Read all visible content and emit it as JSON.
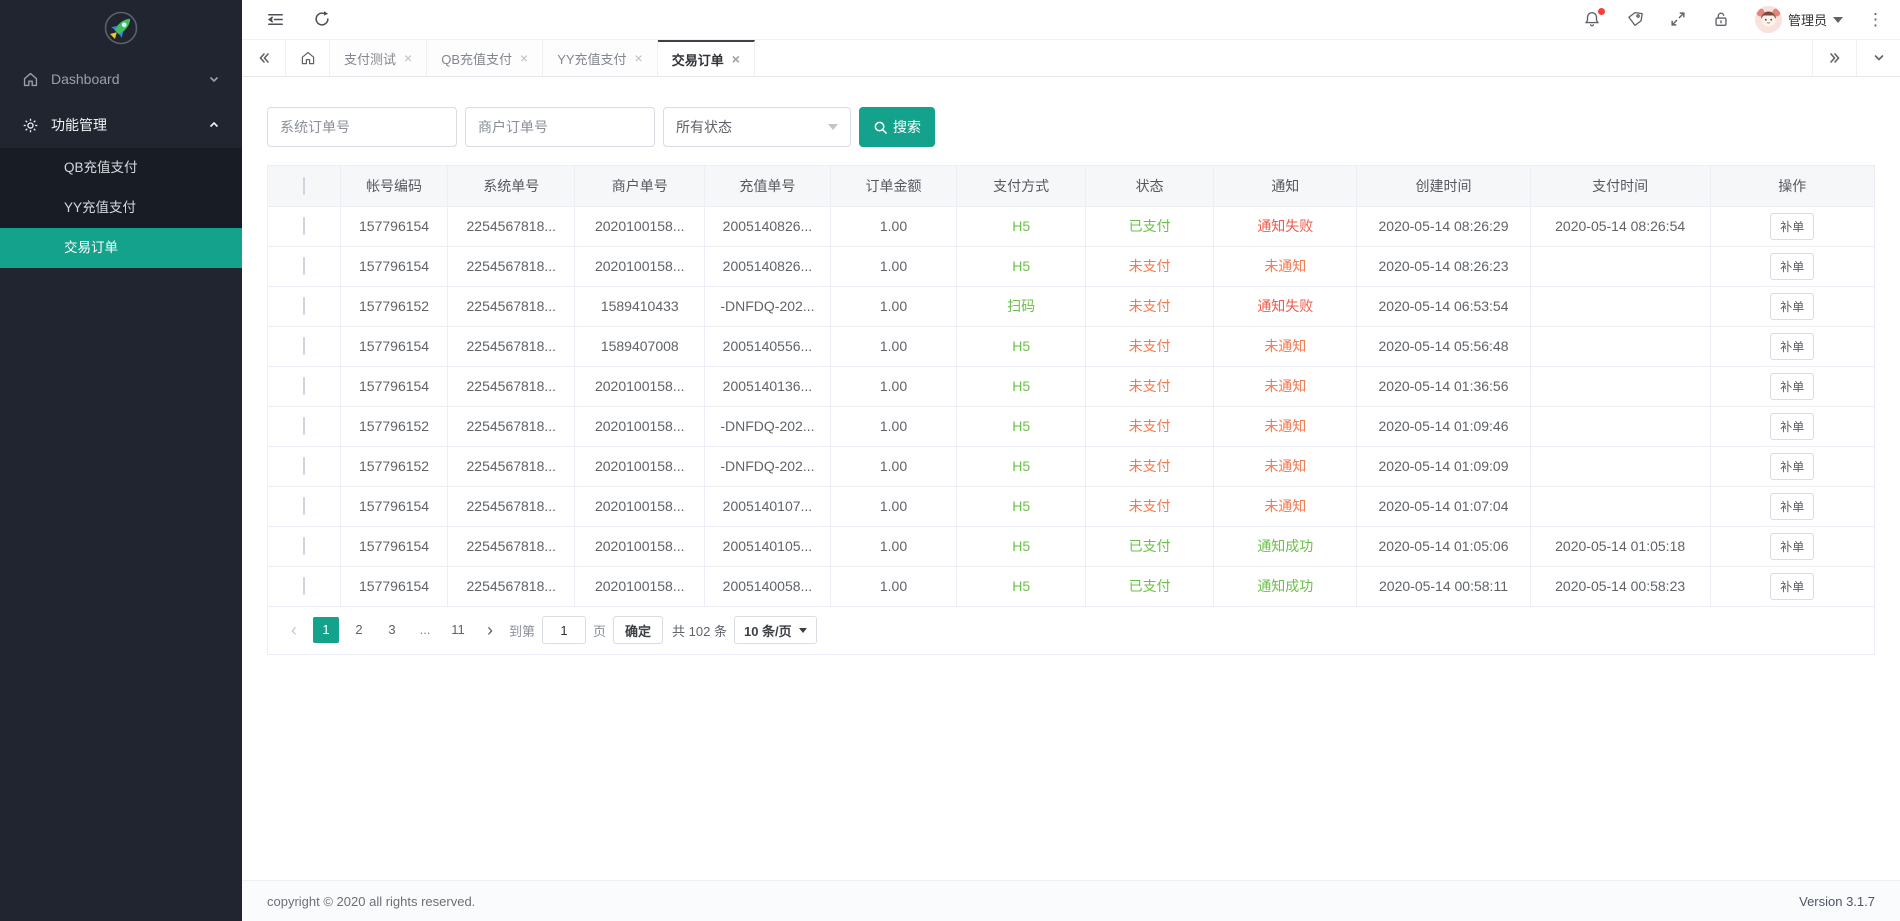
{
  "colors": {
    "accent_teal": "#14a28c",
    "success_green": "#6cc04a",
    "danger_red": "#ef5a4c",
    "warning_orange": "#f27a4f",
    "sidebar_bg": "#20252f",
    "sidebar_submenu_bg": "#181c24",
    "badge_red": "#f53f3f"
  },
  "icons": {
    "logo": "rocket-icon",
    "topbar_left": [
      "collapse-menu-icon",
      "refresh-icon"
    ],
    "topbar_right": [
      "bell-icon",
      "tag-icon",
      "fullscreen-icon",
      "lock-icon",
      "kebab-icon"
    ],
    "search_button": "search-icon",
    "nav": [
      "home-icon",
      "gear-icon"
    ]
  },
  "sidebar": {
    "items": [
      {
        "label": "Dashboard",
        "icon": "home-icon",
        "chevron": "down"
      },
      {
        "label": "功能管理",
        "icon": "gear-icon",
        "chevron": "up"
      }
    ],
    "submenu": [
      {
        "label": "QB充值支付",
        "active": false
      },
      {
        "label": "YY充值支付",
        "active": false
      },
      {
        "label": "交易订单",
        "active": true
      }
    ]
  },
  "header": {
    "user": "管理员"
  },
  "tabs": [
    {
      "label": "支付测试",
      "active": false
    },
    {
      "label": "QB充值支付",
      "active": false
    },
    {
      "label": "YY充值支付",
      "active": false
    },
    {
      "label": "交易订单",
      "active": true
    }
  ],
  "filters": {
    "system_order_placeholder": "系统订单号",
    "merchant_order_placeholder": "商户订单号",
    "status_value": "所有状态",
    "search_label": "搜索"
  },
  "table": {
    "columns": [
      "帐号编码",
      "系统单号",
      "商户单号",
      "充值单号",
      "订单金额",
      "支付方式",
      "状态",
      "通知",
      "创建时间",
      "支付时间",
      "操作"
    ],
    "action_label": "补单",
    "rows": [
      {
        "account": "157796154",
        "system_no": "2254567818...",
        "merchant_no": "2020100158...",
        "recharge_no": "2005140826...",
        "amount": "1.00",
        "method": "H5",
        "status": "已支付",
        "status_type": "paid",
        "notify": "通知失败",
        "notify_type": "fail",
        "created": "2020-05-14 08:26:29",
        "paid_time": "2020-05-14 08:26:54"
      },
      {
        "account": "157796154",
        "system_no": "2254567818...",
        "merchant_no": "2020100158...",
        "recharge_no": "2005140826...",
        "amount": "1.00",
        "method": "H5",
        "status": "未支付",
        "status_type": "unpaid",
        "notify": "未通知",
        "notify_type": "none",
        "created": "2020-05-14 08:26:23",
        "paid_time": ""
      },
      {
        "account": "157796152",
        "system_no": "2254567818...",
        "merchant_no": "1589410433",
        "recharge_no": "-DNFDQ-202...",
        "amount": "1.00",
        "method": "扫码",
        "status": "未支付",
        "status_type": "unpaid",
        "notify": "通知失败",
        "notify_type": "fail",
        "created": "2020-05-14 06:53:54",
        "paid_time": ""
      },
      {
        "account": "157796154",
        "system_no": "2254567818...",
        "merchant_no": "1589407008",
        "recharge_no": "2005140556...",
        "amount": "1.00",
        "method": "H5",
        "status": "未支付",
        "status_type": "unpaid",
        "notify": "未通知",
        "notify_type": "none",
        "created": "2020-05-14 05:56:48",
        "paid_time": ""
      },
      {
        "account": "157796154",
        "system_no": "2254567818...",
        "merchant_no": "2020100158...",
        "recharge_no": "2005140136...",
        "amount": "1.00",
        "method": "H5",
        "status": "未支付",
        "status_type": "unpaid",
        "notify": "未通知",
        "notify_type": "none",
        "created": "2020-05-14 01:36:56",
        "paid_time": ""
      },
      {
        "account": "157796152",
        "system_no": "2254567818...",
        "merchant_no": "2020100158...",
        "recharge_no": "-DNFDQ-202...",
        "amount": "1.00",
        "method": "H5",
        "status": "未支付",
        "status_type": "unpaid",
        "notify": "未通知",
        "notify_type": "none",
        "created": "2020-05-14 01:09:46",
        "paid_time": ""
      },
      {
        "account": "157796152",
        "system_no": "2254567818...",
        "merchant_no": "2020100158...",
        "recharge_no": "-DNFDQ-202...",
        "amount": "1.00",
        "method": "H5",
        "status": "未支付",
        "status_type": "unpaid",
        "notify": "未通知",
        "notify_type": "none",
        "created": "2020-05-14 01:09:09",
        "paid_time": ""
      },
      {
        "account": "157796154",
        "system_no": "2254567818...",
        "merchant_no": "2020100158...",
        "recharge_no": "2005140107...",
        "amount": "1.00",
        "method": "H5",
        "status": "未支付",
        "status_type": "unpaid",
        "notify": "未通知",
        "notify_type": "none",
        "created": "2020-05-14 01:07:04",
        "paid_time": ""
      },
      {
        "account": "157796154",
        "system_no": "2254567818...",
        "merchant_no": "2020100158...",
        "recharge_no": "2005140105...",
        "amount": "1.00",
        "method": "H5",
        "status": "已支付",
        "status_type": "paid",
        "notify": "通知成功",
        "notify_type": "success",
        "created": "2020-05-14 01:05:06",
        "paid_time": "2020-05-14 01:05:18"
      },
      {
        "account": "157796154",
        "system_no": "2254567818...",
        "merchant_no": "2020100158...",
        "recharge_no": "2005140058...",
        "amount": "1.00",
        "method": "H5",
        "status": "已支付",
        "status_type": "paid",
        "notify": "通知成功",
        "notify_type": "success",
        "created": "2020-05-14 00:58:11",
        "paid_time": "2020-05-14 00:58:23"
      }
    ]
  },
  "pagination": {
    "pages": [
      {
        "label": "1",
        "active": true
      },
      {
        "label": "2",
        "active": false
      },
      {
        "label": "3",
        "active": false
      },
      {
        "label": "...",
        "ellipsis": true
      },
      {
        "label": "11",
        "active": false
      }
    ],
    "goto_label": "到第",
    "page_input": "1",
    "page_suffix": "页",
    "confirm_label": "确定",
    "total_label": "共 102 条",
    "page_size": "10 条/页"
  },
  "footer": {
    "copyright": "copyright © 2020 all rights reserved.",
    "version": "Version 3.1.7"
  }
}
